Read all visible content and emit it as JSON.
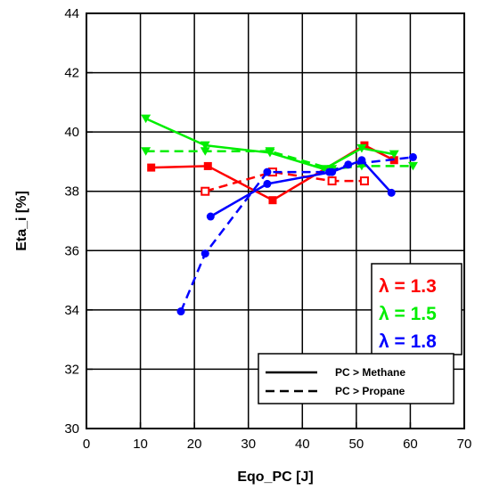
{
  "chart_data": {
    "type": "line",
    "title": "",
    "xlabel": "Eqo_PC [J]",
    "ylabel": "Eta_i [%]",
    "xlim": [
      0,
      70
    ],
    "ylim": [
      30,
      44
    ],
    "x_ticks": [
      "0",
      "10",
      "20",
      "30",
      "40",
      "50",
      "60",
      "70"
    ],
    "y_ticks": [
      "30",
      "32",
      "34",
      "36",
      "38",
      "40",
      "42",
      "44"
    ],
    "grid": true,
    "lambda_legend": [
      {
        "label": "λ = 1.3",
        "color": "#ff0000"
      },
      {
        "label": "λ = 1.5",
        "color": "#00ee00"
      },
      {
        "label": "λ = 1.8",
        "color": "#0000ff"
      }
    ],
    "style_legend": [
      {
        "label": "PC > Methane",
        "dash": "solid"
      },
      {
        "label": "PC > Propane",
        "dash": "dashed"
      }
    ],
    "series": [
      {
        "group": "λ = 1.3",
        "fuel": "PC > Methane",
        "color": "#ff0000",
        "dash": "solid",
        "marker": "square-filled",
        "x": [
          12,
          22.5,
          34.5,
          51.5,
          57
        ],
        "y": [
          38.8,
          38.85,
          37.7,
          39.55,
          39.05
        ]
      },
      {
        "group": "λ = 1.3",
        "fuel": "PC > Propane",
        "color": "#ff0000",
        "dash": "dashed",
        "marker": "square-open",
        "x": [
          22,
          34.5,
          45.5,
          51.5
        ],
        "y": [
          38.0,
          38.65,
          38.35,
          38.35
        ]
      },
      {
        "group": "λ = 1.5",
        "fuel": "PC > Methane",
        "color": "#00ee00",
        "dash": "solid",
        "marker": "triangle-down-filled",
        "x": [
          11,
          22,
          34,
          44,
          51,
          57
        ],
        "y": [
          40.45,
          39.55,
          39.3,
          38.75,
          39.45,
          39.25
        ]
      },
      {
        "group": "λ = 1.5",
        "fuel": "PC > Propane",
        "color": "#00ee00",
        "dash": "dashed",
        "marker": "triangle-down-filled",
        "x": [
          11,
          22,
          34,
          45.5,
          51,
          60.5
        ],
        "y": [
          39.35,
          39.35,
          39.35,
          38.75,
          38.85,
          38.85
        ]
      },
      {
        "group": "λ = 1.8",
        "fuel": "PC > Methane",
        "color": "#0000ff",
        "dash": "solid",
        "marker": "circle-filled",
        "x": [
          23,
          33.5,
          45.5,
          51,
          56.5
        ],
        "y": [
          37.15,
          38.25,
          38.65,
          39.05,
          37.95
        ]
      },
      {
        "group": "λ = 1.8",
        "fuel": "PC > Propane",
        "color": "#0000ff",
        "dash": "dashed",
        "marker": "circle-filled",
        "x": [
          17.5,
          22,
          33.5,
          45,
          48.5,
          60.5
        ],
        "y": [
          33.95,
          35.9,
          38.65,
          38.65,
          38.9,
          39.15
        ]
      }
    ]
  }
}
